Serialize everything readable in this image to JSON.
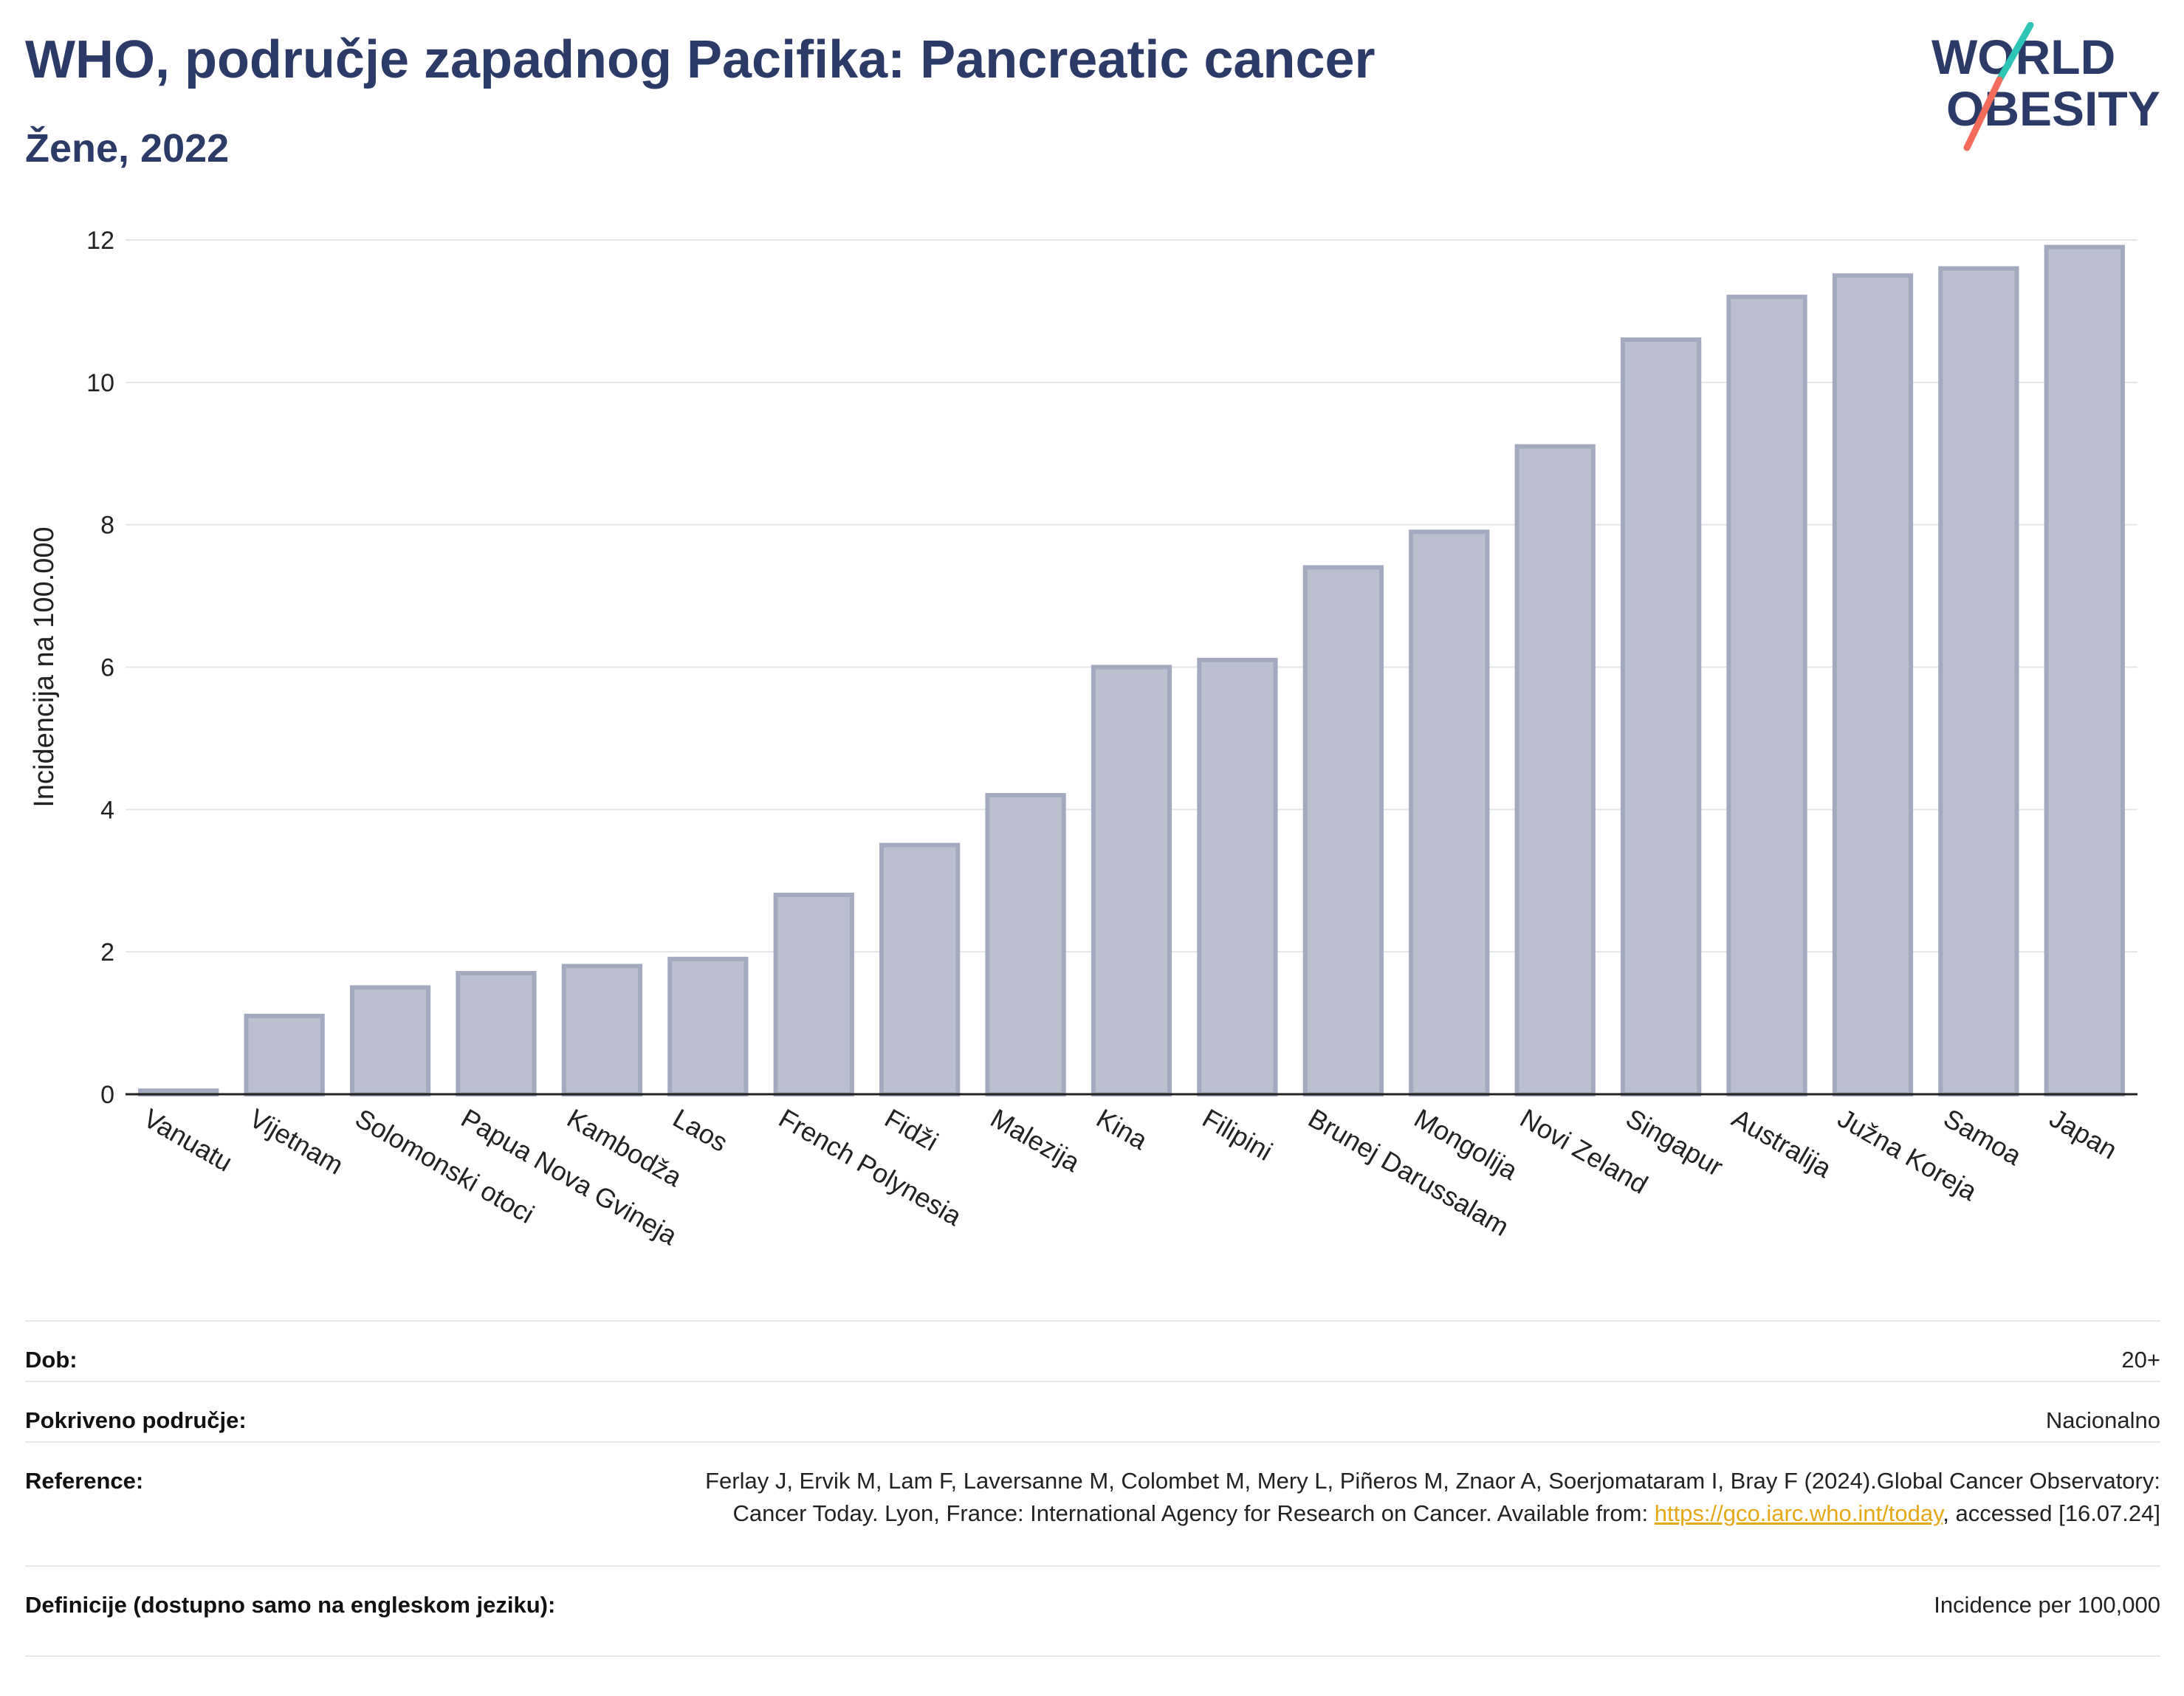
{
  "header": {
    "title": "WHO, područje zapadnog Pacifika: Pancreatic cancer",
    "subtitle": "Žene, 2022"
  },
  "logo": {
    "line1": "WORLD",
    "line2": "OBESITY",
    "icon": "world-obesity-logo",
    "accent_colors": [
      "#2ec4b6",
      "#f26b5b"
    ]
  },
  "colors": {
    "bar_fill": "#bcc0ce",
    "bar_stroke": "#a3a9be",
    "title": "#2b3a67",
    "link": "#e6a817"
  },
  "chart_data": {
    "type": "bar",
    "categories": [
      "Vanuatu",
      "Vijetnam",
      "Solomonski otoci",
      "Papua Nova Gvineja",
      "Kambodža",
      "Laos",
      "French Polynesia",
      "Fidži",
      "Malezija",
      "Kina",
      "Filipini",
      "Brunej Darussalam",
      "Mongolija",
      "Novi Zeland",
      "Singapur",
      "Australija",
      "Južna Koreja",
      "Samoa",
      "Japan"
    ],
    "values": [
      0.05,
      1.1,
      1.5,
      1.7,
      1.8,
      1.9,
      2.8,
      3.5,
      4.2,
      6.0,
      6.1,
      7.4,
      7.9,
      9.1,
      10.6,
      11.2,
      11.5,
      11.6,
      11.9
    ],
    "ylabel": "Incidencija na 100.000",
    "xlabel": "",
    "ylim": [
      0,
      12
    ],
    "yticks": [
      0,
      2,
      4,
      6,
      8,
      10,
      12
    ],
    "grid": true
  },
  "meta": {
    "age_label": "Dob:",
    "age_value": "20+",
    "coverage_label": "Pokriveno područje:",
    "coverage_value": "Nacionalno",
    "reference_label": "Reference:",
    "reference_text_1": "Ferlay J, Ervik M, Lam F, Laversanne M, Colombet M, Mery L, Piñeros M, Znaor A, Soerjomataram I, Bray F (2024).Global Cancer Observatory: Cancer Today. Lyon, France: International Agency for Research on Cancer. Available from: ",
    "reference_link": "https://gco.iarc.who.int/today",
    "reference_text_2": ", accessed [16.07.24]",
    "definitions_label": "Definicije (dostupno samo na engleskom jeziku):",
    "definitions_value": "Incidence per 100,000"
  }
}
